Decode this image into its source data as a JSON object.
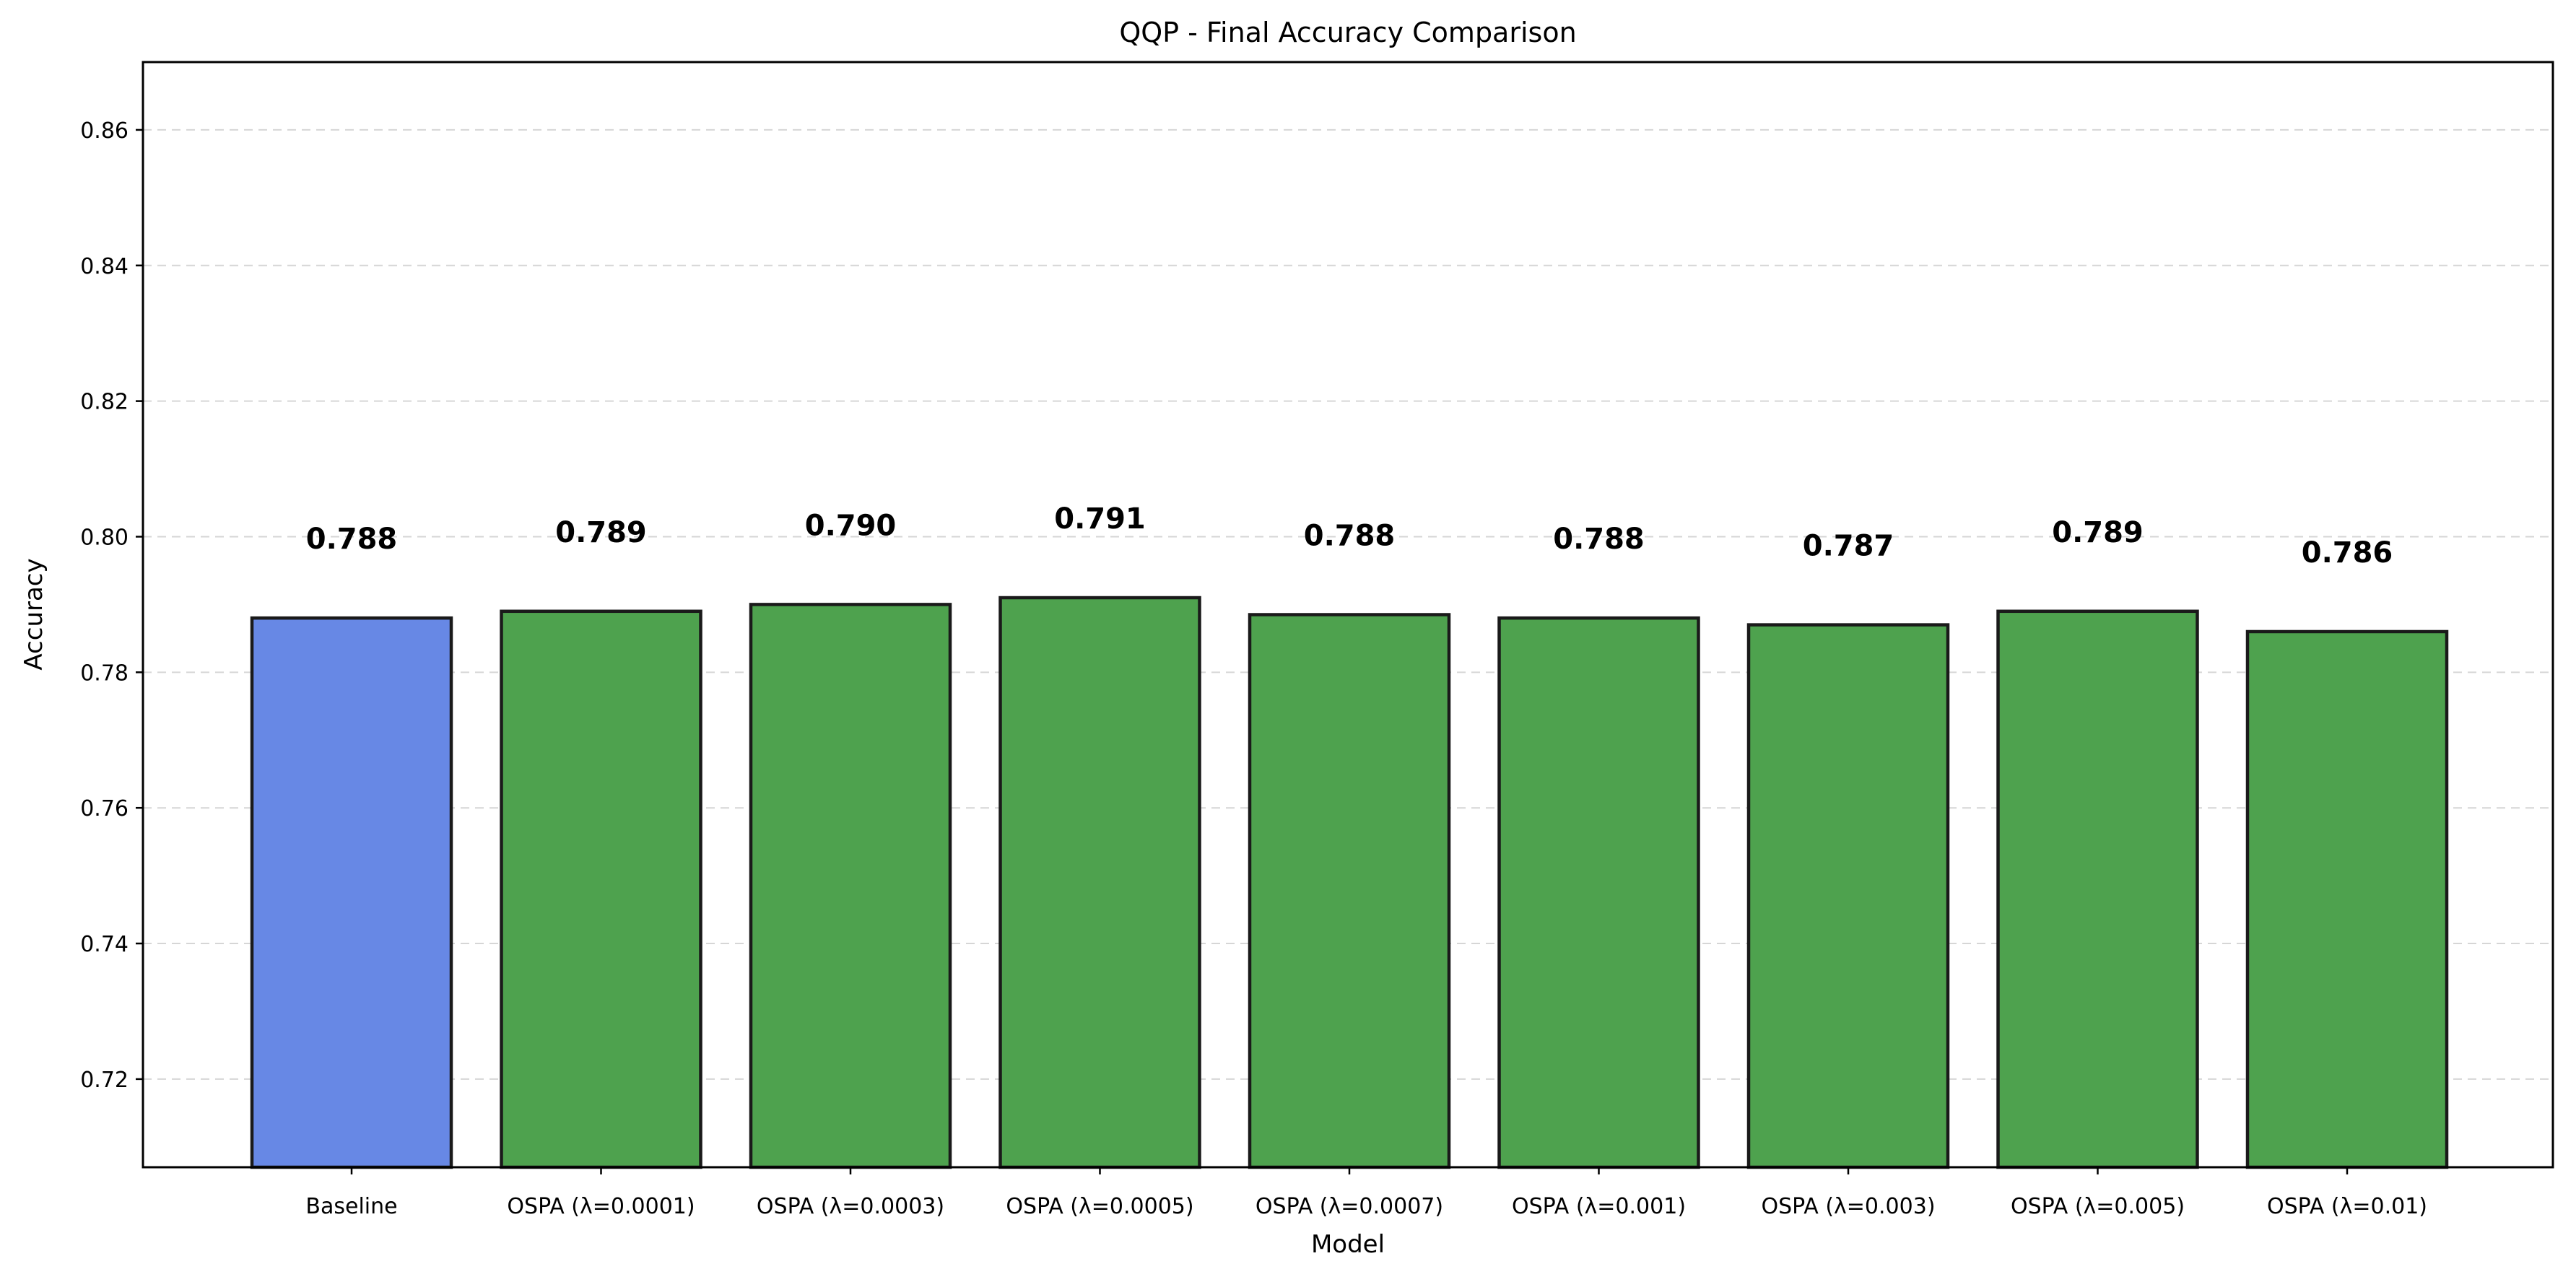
{
  "chart_data": {
    "type": "bar",
    "title": "QQP - Final Accuracy Comparison",
    "xlabel": "Model",
    "ylabel": "Accuracy",
    "ylim": [
      0.707,
      0.87
    ],
    "yticks": [
      "0.72",
      "0.74",
      "0.76",
      "0.78",
      "0.80",
      "0.82",
      "0.84",
      "0.86"
    ],
    "grid": "y-dashed",
    "categories": [
      "Baseline",
      "OSPA (λ=0.0001)",
      "OSPA (λ=0.0003)",
      "OSPA (λ=0.0005)",
      "OSPA (λ=0.0007)",
      "OSPA (λ=0.001)",
      "OSPA (λ=0.003)",
      "OSPA (λ=0.005)",
      "OSPA (λ=0.01)"
    ],
    "values": [
      0.788,
      0.789,
      0.79,
      0.791,
      0.7885,
      0.788,
      0.787,
      0.789,
      0.786
    ],
    "data_labels": [
      "0.788",
      "0.789",
      "0.790",
      "0.791",
      "0.788",
      "0.788",
      "0.787",
      "0.789",
      "0.786"
    ],
    "colors": [
      "#6788e5",
      "#4ea24e",
      "#4ea24e",
      "#4ea24e",
      "#4ea24e",
      "#4ea24e",
      "#4ea24e",
      "#4ea24e",
      "#4ea24e"
    ]
  }
}
